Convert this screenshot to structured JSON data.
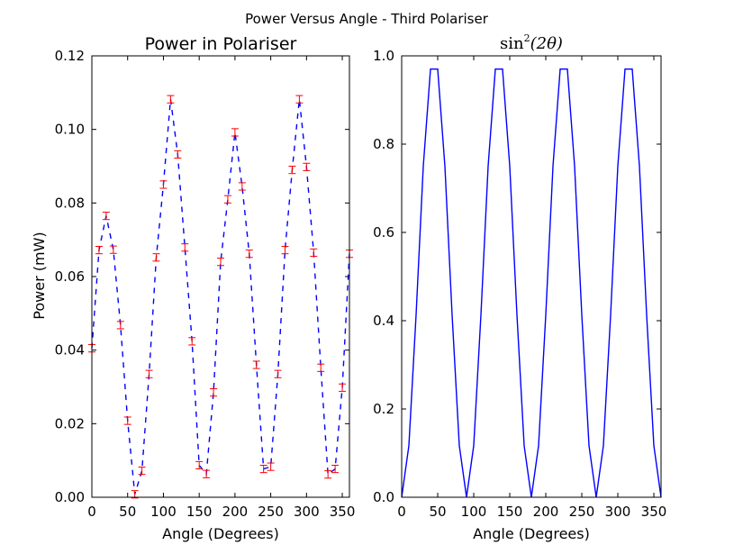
{
  "figure": {
    "suptitle": "Power Versus Angle - Third Polariser"
  },
  "colors": {
    "power_line": "#0000ff",
    "errorbar": "#ff0000",
    "sin_line": "#0000ff",
    "axes": "#000000"
  },
  "chart_data": [
    {
      "type": "line",
      "title": "Power in Polariser",
      "xlabel": "Angle (Degrees)",
      "ylabel": "Power (mW)",
      "xlim": [
        0,
        360
      ],
      "ylim": [
        0,
        0.12
      ],
      "xticks": [
        "0",
        "50",
        "100",
        "150",
        "200",
        "250",
        "300",
        "350"
      ],
      "yticks": [
        "0.00",
        "0.02",
        "0.04",
        "0.06",
        "0.08",
        "0.10",
        "0.12"
      ],
      "line_style": "dashed",
      "error_bars": true,
      "error": 0.001,
      "series": [
        {
          "x": [
            0,
            10,
            20,
            30,
            40,
            50,
            60,
            70,
            80,
            90,
            100,
            110,
            120,
            130,
            140,
            150,
            160,
            170,
            180,
            190,
            200,
            210,
            220,
            230,
            240,
            250,
            260,
            270,
            280,
            290,
            300,
            310,
            320,
            330,
            340,
            350,
            360
          ],
          "values": [
            0.0405,
            0.0672,
            0.0765,
            0.0673,
            0.0468,
            0.0208,
            0.0008,
            0.0072,
            0.0335,
            0.0652,
            0.085,
            0.1082,
            0.0932,
            0.0679,
            0.0424,
            0.0087,
            0.0063,
            0.0285,
            0.064,
            0.081,
            0.0992,
            0.0845,
            0.0662,
            0.036,
            0.0077,
            0.0083,
            0.0335,
            0.0672,
            0.089,
            0.1082,
            0.0898,
            0.0665,
            0.0352,
            0.0062,
            0.0077,
            0.0298,
            0.0662
          ]
        }
      ]
    },
    {
      "type": "line",
      "title_parts": {
        "pre": "sin",
        "sup": "2",
        "post": "(2θ)"
      },
      "xlabel": "Angle (Degrees)",
      "ylabel": "",
      "xlim": [
        0,
        360
      ],
      "ylim": [
        0,
        1.0
      ],
      "xticks": [
        "0",
        "50",
        "100",
        "150",
        "200",
        "250",
        "300",
        "350"
      ],
      "yticks": [
        "0.0",
        "0.2",
        "0.4",
        "0.6",
        "0.8",
        "1.0"
      ],
      "line_style": "solid",
      "series": [
        {
          "x": [
            0,
            10,
            20,
            30,
            40,
            50,
            60,
            70,
            80,
            90,
            100,
            110,
            120,
            130,
            140,
            150,
            160,
            170,
            180,
            190,
            200,
            210,
            220,
            230,
            240,
            250,
            260,
            270,
            280,
            290,
            300,
            310,
            320,
            330,
            340,
            350,
            360
          ],
          "values": [
            0.0,
            0.117,
            0.413,
            0.75,
            0.97,
            0.97,
            0.75,
            0.413,
            0.117,
            0.0,
            0.117,
            0.413,
            0.75,
            0.97,
            0.97,
            0.75,
            0.413,
            0.117,
            0.0,
            0.117,
            0.413,
            0.75,
            0.97,
            0.97,
            0.75,
            0.413,
            0.117,
            0.0,
            0.117,
            0.413,
            0.75,
            0.97,
            0.97,
            0.75,
            0.413,
            0.117,
            0.0
          ]
        }
      ]
    }
  ]
}
